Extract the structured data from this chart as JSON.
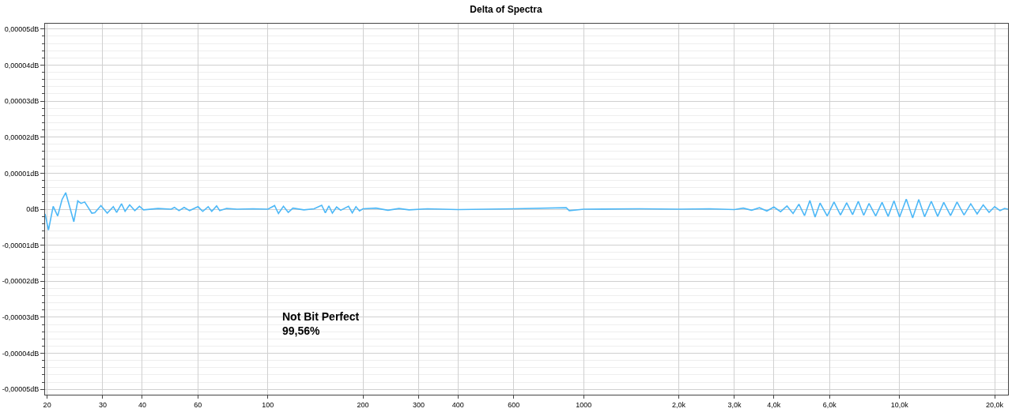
{
  "chart_data": {
    "type": "line",
    "title": "Delta of Spectra",
    "log": "x",
    "grid": true,
    "marker": "none",
    "line_style": "solid",
    "xlim": [
      19.7,
      22050
    ],
    "xticks": [
      20,
      30,
      40,
      60,
      100,
      200,
      300,
      400,
      600,
      1000,
      {
        "value": 2000,
        "label": "2,0k"
      },
      {
        "value": 3000,
        "label": "3,0k"
      },
      {
        "value": 4000,
        "label": "4,0k"
      },
      {
        "value": 6000,
        "label": "6,0k"
      },
      {
        "value": 10000,
        "label": "10,0k"
      },
      {
        "value": 20000,
        "label": "20,0k"
      }
    ],
    "ylim": [
      -5.15e-05,
      5.15e-05
    ],
    "yticks": [
      {
        "value": -5e-05,
        "label": "-0,00005dB"
      },
      {
        "value": -4e-05,
        "label": "-0,00004dB"
      },
      {
        "value": -3e-05,
        "label": "-0,00003dB"
      },
      {
        "value": -2e-05,
        "label": "-0,00002dB"
      },
      {
        "value": -1e-05,
        "label": "-0,00001dB"
      },
      {
        "value": 0,
        "label": "0dB"
      },
      {
        "value": 1e-05,
        "label": "0,00001dB"
      },
      {
        "value": 2e-05,
        "label": "0,00002dB"
      },
      {
        "value": 3e-05,
        "label": "0,00003dB"
      },
      {
        "value": 4e-05,
        "label": "0,00004dB"
      },
      {
        "value": 5e-05,
        "label": "0,00005dB"
      }
    ],
    "annotations": [
      "Not Bit Perfect",
      "99,56%"
    ],
    "series": [
      {
        "color": "#4db8f7",
        "x": [
          19.7,
          20.2,
          20.9,
          21.6,
          22.3,
          22.9,
          24.3,
          25.0,
          25.6,
          26.3,
          27.7,
          28.3,
          29.6,
          31.0,
          32.4,
          33.2,
          34.4,
          35.3,
          36.5,
          37.9,
          39.2,
          40.4,
          44.9,
          49.4,
          50.6,
          52.3,
          54.3,
          56.5,
          60.1,
          62.2,
          64.7,
          66.4,
          68.8,
          70.4,
          74.0,
          79.9,
          89.7,
          100,
          105,
          108,
          112,
          116,
          120,
          130,
          140,
          148,
          152,
          156,
          160,
          165,
          170,
          180,
          185,
          190,
          195,
          200,
          220,
          240,
          260,
          280,
          320,
          400,
          600,
          880,
          900,
          1000,
          1500,
          2000,
          2500,
          3000,
          3200,
          3400,
          3600,
          3800,
          4000,
          4200,
          4400,
          4600,
          4800,
          5000,
          5200,
          5400,
          5600,
          5900,
          6200,
          6500,
          6800,
          7100,
          7400,
          7700,
          8000,
          8400,
          8800,
          9200,
          9600,
          10000,
          10500,
          11000,
          11500,
          12000,
          12600,
          13200,
          13800,
          14500,
          15200,
          16000,
          16800,
          17600,
          18400,
          19200,
          20000,
          20800,
          21500,
          22050
        ],
        "values": [
          -1.3e-06,
          -5.8e-06,
          8e-07,
          -1.9e-06,
          2.7e-06,
          4.6e-06,
          -3.5e-06,
          2.3e-06,
          1.6e-06,
          2e-06,
          -1.1e-06,
          -1e-06,
          1e-06,
          -1.1e-06,
          7e-07,
          -9e-07,
          1.5e-06,
          -6e-07,
          1.2e-06,
          -4e-07,
          8e-07,
          -2e-07,
          2e-07,
          0,
          5e-07,
          -4e-07,
          5e-07,
          -4e-07,
          7e-07,
          -6e-07,
          7e-07,
          -6e-07,
          9e-07,
          -4e-07,
          2e-07,
          0,
          1e-07,
          0,
          1e-06,
          -1.2e-06,
          8e-07,
          -9e-07,
          3e-07,
          -2e-07,
          1e-07,
          1.1e-06,
          -1e-06,
          9e-07,
          -1.1e-06,
          6e-07,
          -3e-07,
          8e-07,
          -1e-06,
          7e-07,
          -5e-07,
          1e-07,
          3e-07,
          -3e-07,
          2e-07,
          -2e-07,
          1e-07,
          -1e-07,
          1e-07,
          4e-07,
          -4e-07,
          0,
          1e-07,
          0,
          1e-07,
          -1e-07,
          3e-07,
          -3e-07,
          4e-07,
          -5e-07,
          6e-07,
          -7e-07,
          9e-07,
          -1.2e-06,
          1.4e-06,
          -1.8e-06,
          2.4e-06,
          -2.2e-06,
          1.7e-06,
          -1.9e-06,
          2e-06,
          -1.6e-06,
          1.8e-06,
          -1.5e-06,
          2.2e-06,
          -1.7e-06,
          1.6e-06,
          -1.9e-06,
          1.9e-06,
          -2e-06,
          2.3e-06,
          -2.2e-06,
          2.8e-06,
          -2.4e-06,
          2.7e-06,
          -2.1e-06,
          2.2e-06,
          -2e-06,
          1.9e-06,
          -1.8e-06,
          2e-06,
          -1.6e-06,
          1.5e-06,
          -1.3e-06,
          1.2e-06,
          -9e-07,
          7e-07,
          -4e-07,
          2e-07,
          0
        ]
      }
    ]
  }
}
